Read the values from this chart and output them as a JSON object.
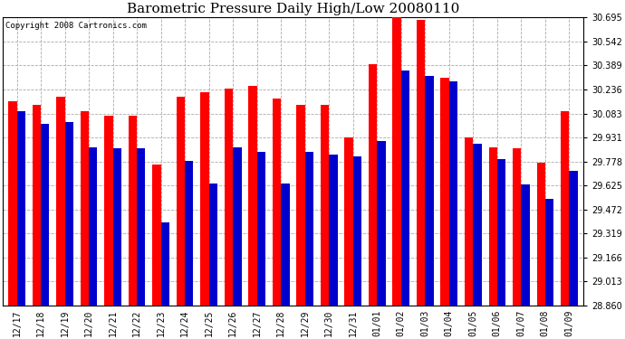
{
  "title": "Barometric Pressure Daily High/Low 20080110",
  "copyright": "Copyright 2008 Cartronics.com",
  "dates": [
    "12/17",
    "12/18",
    "12/19",
    "12/20",
    "12/21",
    "12/22",
    "12/23",
    "12/24",
    "12/25",
    "12/26",
    "12/27",
    "12/28",
    "12/29",
    "12/30",
    "12/31",
    "01/01",
    "01/02",
    "01/03",
    "01/04",
    "01/05",
    "01/06",
    "01/07",
    "01/08",
    "01/09"
  ],
  "highs": [
    30.16,
    30.14,
    30.19,
    30.1,
    30.07,
    30.07,
    29.76,
    30.19,
    30.22,
    30.24,
    30.26,
    30.18,
    30.14,
    30.14,
    29.93,
    30.4,
    30.71,
    30.68,
    30.31,
    29.93,
    29.87,
    29.86,
    29.77,
    30.1
  ],
  "lows": [
    30.1,
    30.02,
    30.03,
    29.87,
    29.86,
    29.86,
    29.39,
    29.78,
    29.64,
    29.87,
    29.84,
    29.64,
    29.84,
    29.82,
    29.81,
    29.91,
    30.36,
    30.32,
    30.29,
    29.89,
    29.79,
    29.63,
    29.54,
    29.72
  ],
  "yticks": [
    28.86,
    29.013,
    29.166,
    29.319,
    29.472,
    29.625,
    29.778,
    29.931,
    30.083,
    30.236,
    30.389,
    30.542,
    30.695
  ],
  "ymin": 28.86,
  "ymax": 30.695,
  "high_color": "#FF0000",
  "low_color": "#0000CC",
  "bg_color": "#FFFFFF",
  "plot_bg_color": "#FFFFFF",
  "grid_color": "#AAAAAA",
  "bar_width": 0.35,
  "title_fontsize": 11,
  "tick_fontsize": 7,
  "copyright_fontsize": 6.5
}
